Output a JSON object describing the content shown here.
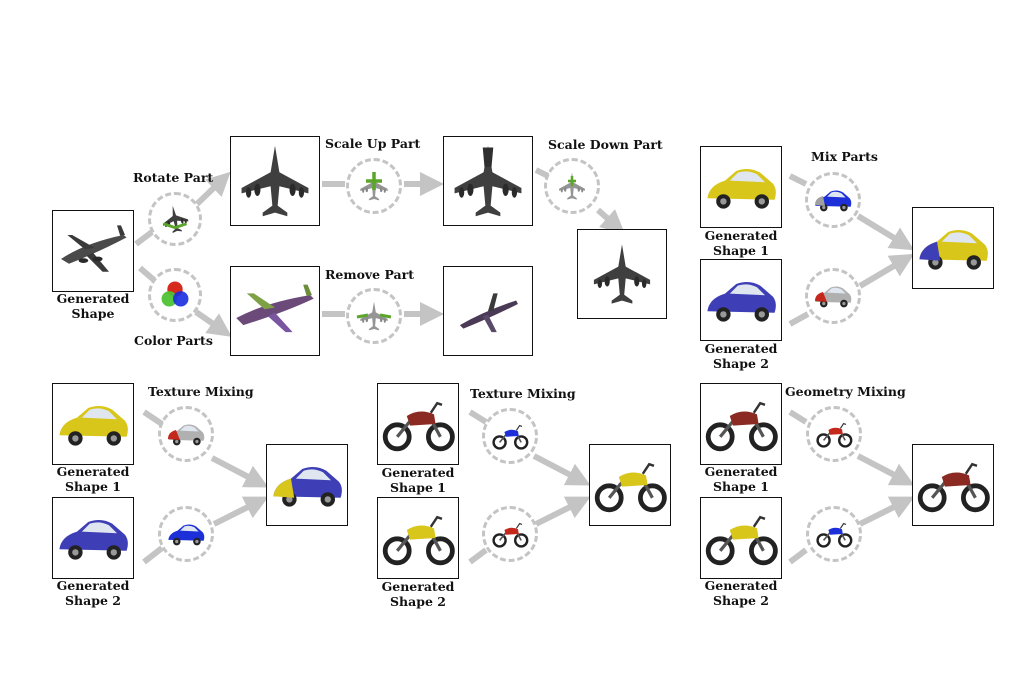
{
  "colors": {
    "arrow": "#c4c4c4",
    "plane": "#4a4a4a",
    "yellow": "#d9c61a",
    "blue": "#3e3fb6",
    "red": "#c4281c",
    "gray": "#9a9a9a",
    "green": "#5aa52a"
  },
  "panel_a": {
    "generated_line1": "Generated",
    "generated_line2": "Shape",
    "rotate_label": "Rotate Part",
    "color_label": "Color Parts",
    "scale_up_label": "Scale Up Part",
    "scale_down_label": "Scale Down Part",
    "remove_label": "Remove Part"
  },
  "panel_b": {
    "label": "Mix Parts",
    "shape1_line1": "Generated",
    "shape1_line2": "Shape 1",
    "shape2_line1": "Generated",
    "shape2_line2": "Shape 2"
  },
  "panel_c": {
    "label": "Texture Mixing",
    "shape1_line1": "Generated",
    "shape1_line2": "Shape 1",
    "shape2_line1": "Generated",
    "shape2_line2": "Shape 2"
  },
  "panel_d": {
    "label": "Texture Mixing",
    "shape1_line1": "Generated",
    "shape1_line2": "Shape 1",
    "shape2_line1": "Generated",
    "shape2_line2": "Shape 2"
  },
  "panel_e": {
    "label": "Geometry Mixing",
    "shape1_line1": "Generated",
    "shape1_line2": "Shape 1",
    "shape2_line1": "Generated",
    "shape2_line2": "Shape 2"
  }
}
